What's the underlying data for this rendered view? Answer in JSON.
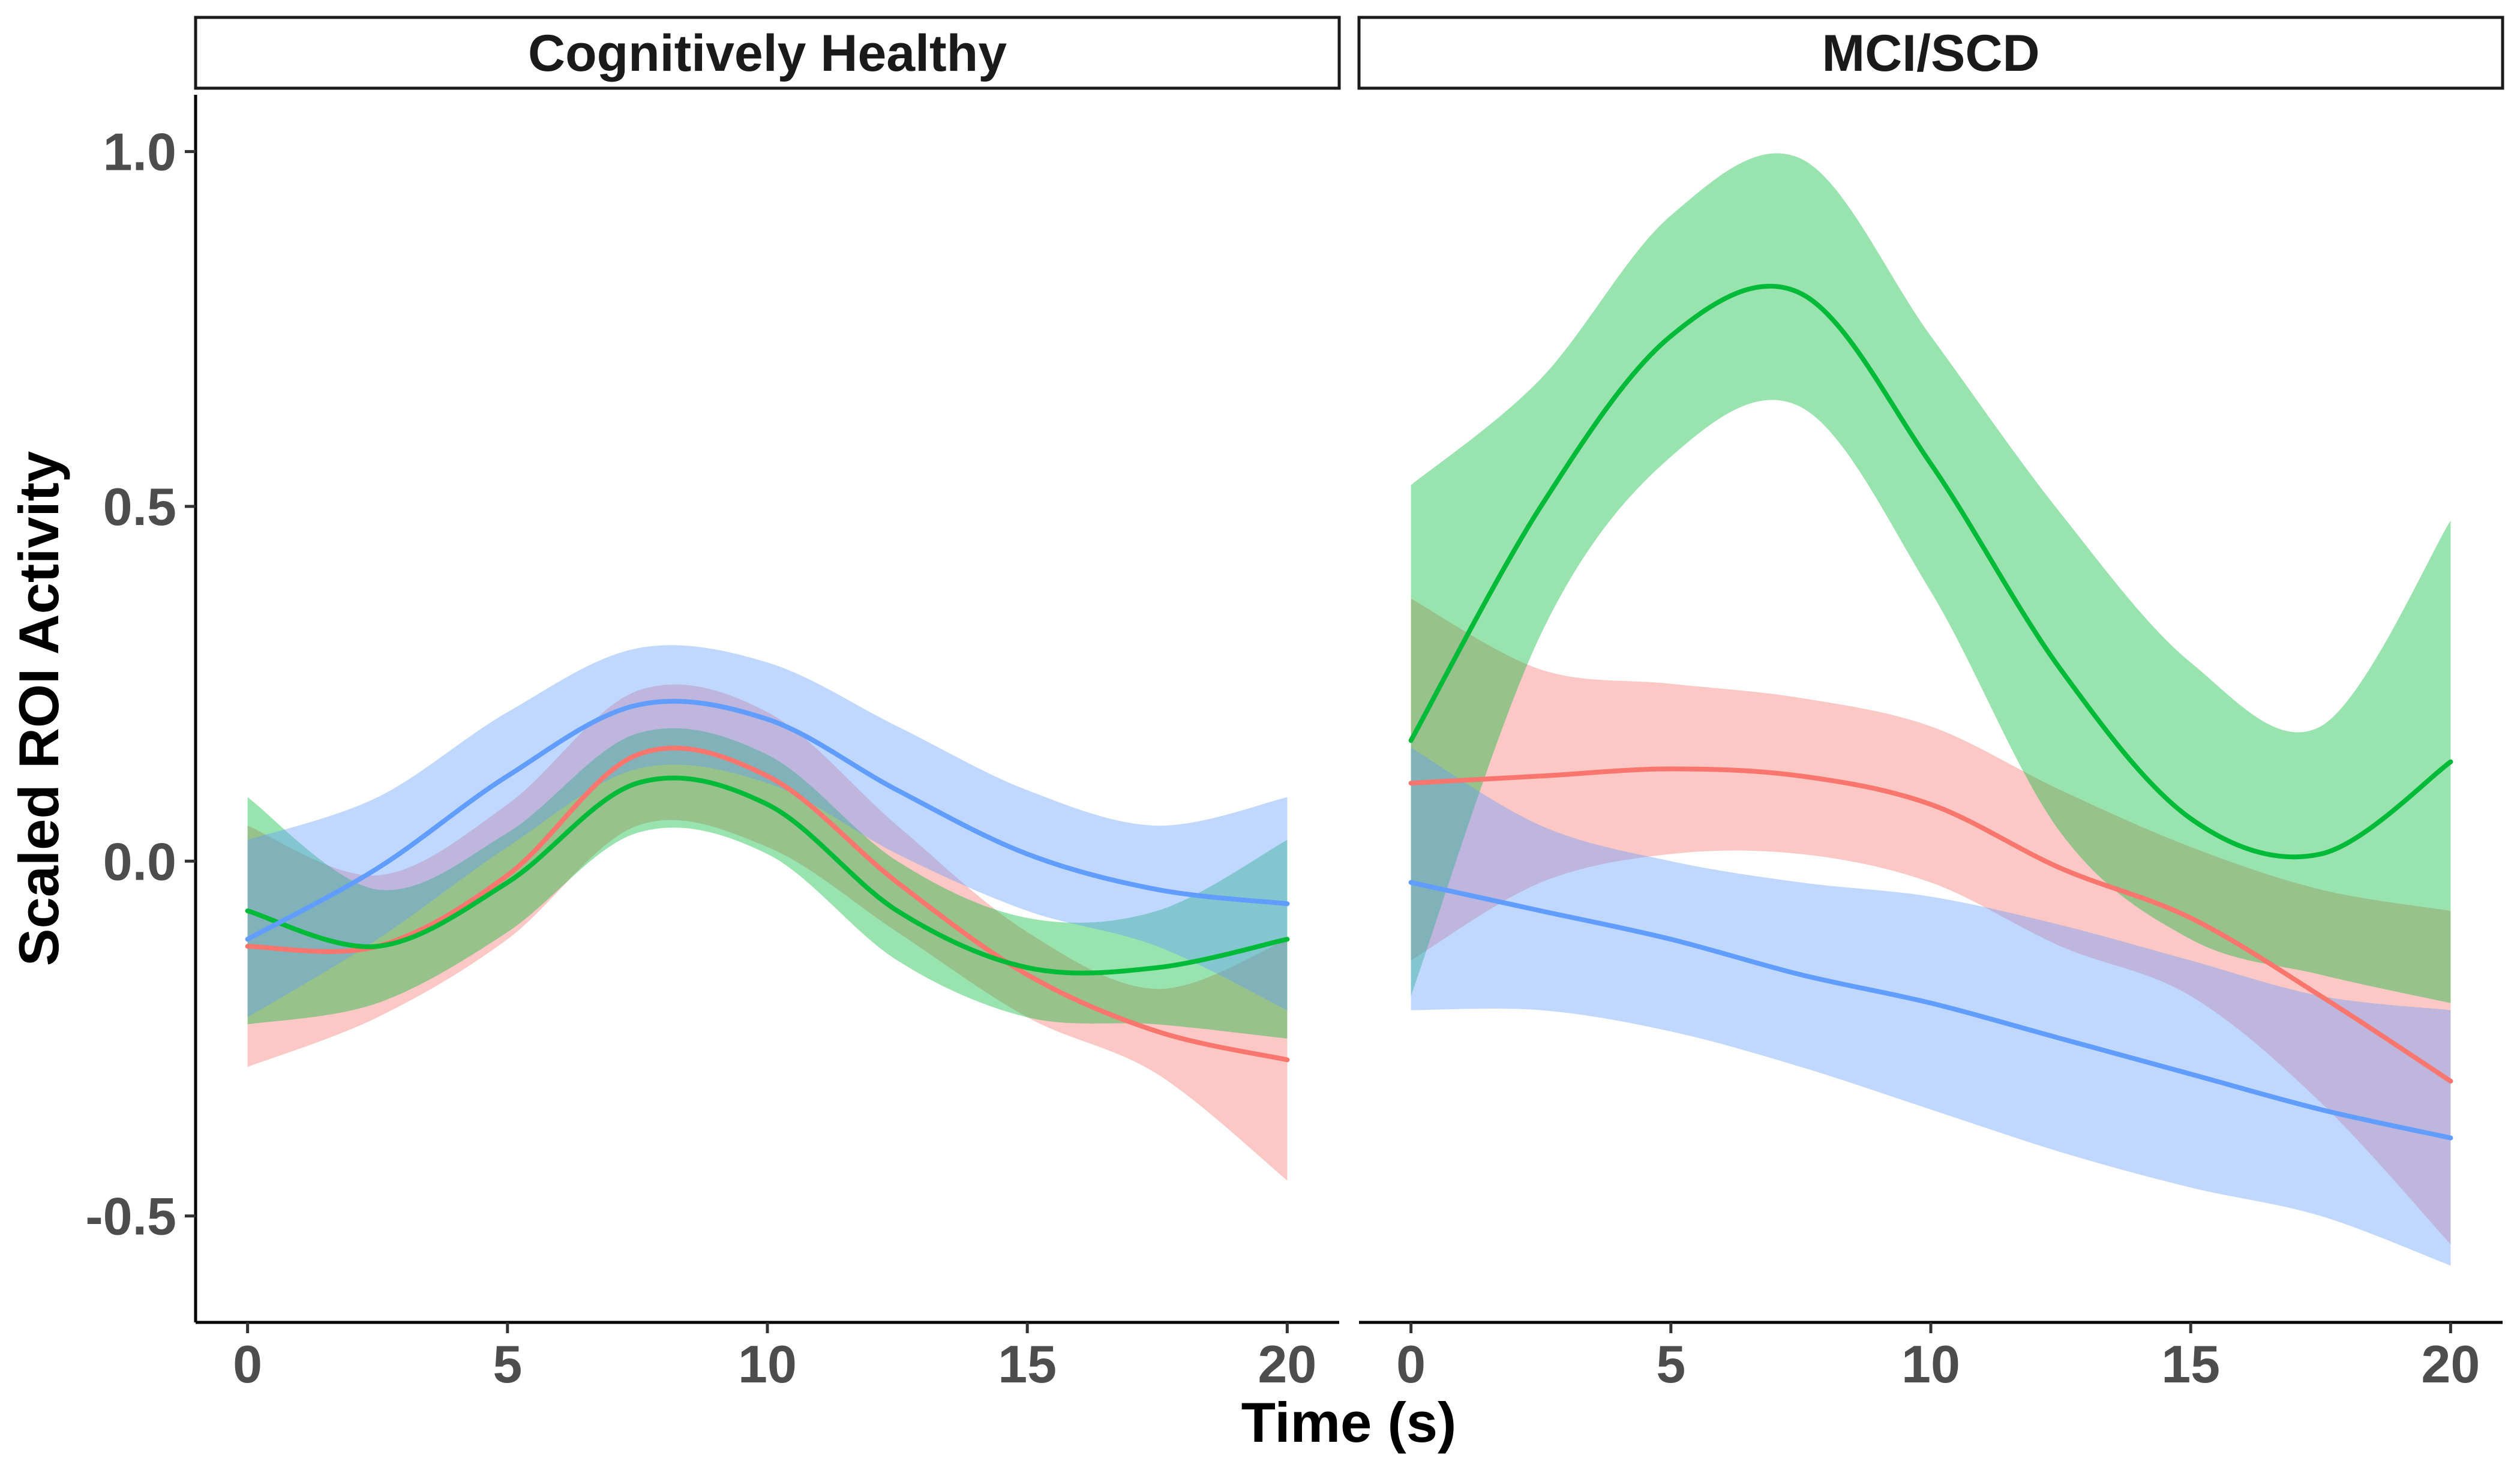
{
  "chart_data": {
    "type": "line",
    "xlabel": "Time (s)",
    "ylabel": "Scaled ROI Activity",
    "xlim": [
      -1,
      21
    ],
    "ylim": [
      -0.65,
      1.08
    ],
    "x_ticks": [
      0,
      5,
      10,
      15,
      20
    ],
    "y_ticks": [
      -0.5,
      0.0,
      0.5,
      1.0
    ],
    "y_tick_labels": [
      "-0.5",
      "0.0",
      "0.5",
      "1.0"
    ],
    "grid": false,
    "legend": "none",
    "x": [
      0,
      2.5,
      5,
      7.5,
      10,
      12.5,
      15,
      17.5,
      20
    ],
    "panels": [
      {
        "title": "Cognitively Healthy",
        "series": [
          {
            "color": "#F8766D",
            "y": [
              -0.12,
              -0.12,
              -0.02,
              0.15,
              0.12,
              -0.03,
              -0.16,
              -0.24,
              -0.28
            ],
            "lower": [
              -0.29,
              -0.22,
              -0.11,
              0.05,
              0.02,
              -0.1,
              -0.22,
              -0.3,
              -0.45
            ],
            "upper": [
              0.05,
              -0.02,
              0.08,
              0.24,
              0.21,
              0.05,
              -0.1,
              -0.18,
              -0.11
            ]
          },
          {
            "color": "#00BA38",
            "y": [
              -0.07,
              -0.12,
              -0.03,
              0.11,
              0.08,
              -0.07,
              -0.15,
              -0.15,
              -0.11
            ],
            "lower": [
              -0.23,
              -0.2,
              -0.1,
              0.04,
              0.01,
              -0.14,
              -0.22,
              -0.23,
              -0.25
            ],
            "upper": [
              0.09,
              -0.04,
              0.04,
              0.18,
              0.15,
              0.0,
              -0.08,
              -0.07,
              0.03
            ]
          },
          {
            "color": "#619CFF",
            "y": [
              -0.11,
              -0.01,
              0.12,
              0.22,
              0.2,
              0.1,
              0.01,
              -0.04,
              -0.06
            ],
            "lower": [
              -0.22,
              -0.11,
              0.02,
              0.13,
              0.11,
              0.01,
              -0.07,
              -0.12,
              -0.21
            ],
            "upper": [
              0.03,
              0.09,
              0.21,
              0.3,
              0.28,
              0.19,
              0.1,
              0.05,
              0.09
            ]
          }
        ]
      },
      {
        "title": "MCI/SCD",
        "series": [
          {
            "color": "#F8766D",
            "y": [
              0.11,
              0.12,
              0.13,
              0.12,
              0.08,
              -0.01,
              -0.08,
              -0.19,
              -0.31
            ],
            "lower": [
              -0.14,
              -0.03,
              0.01,
              0.01,
              -0.03,
              -0.12,
              -0.19,
              -0.34,
              -0.54
            ],
            "upper": [
              0.37,
              0.27,
              0.25,
              0.23,
              0.19,
              0.1,
              0.02,
              -0.04,
              -0.07
            ]
          },
          {
            "color": "#00BA38",
            "y": [
              0.17,
              0.5,
              0.74,
              0.8,
              0.56,
              0.27,
              0.06,
              0.01,
              0.14
            ],
            "lower": [
              -0.19,
              0.32,
              0.57,
              0.64,
              0.38,
              0.04,
              -0.11,
              -0.16,
              -0.2
            ],
            "upper": [
              0.53,
              0.68,
              0.91,
              0.99,
              0.74,
              0.49,
              0.28,
              0.19,
              0.48
            ]
          },
          {
            "color": "#619CFF",
            "y": [
              -0.03,
              -0.07,
              -0.11,
              -0.16,
              -0.2,
              -0.25,
              -0.3,
              -0.35,
              -0.39
            ],
            "lower": [
              -0.21,
              -0.21,
              -0.24,
              -0.29,
              -0.35,
              -0.41,
              -0.46,
              -0.5,
              -0.57
            ],
            "upper": [
              0.16,
              0.05,
              0.0,
              -0.03,
              -0.05,
              -0.09,
              -0.14,
              -0.19,
              -0.21
            ]
          }
        ]
      }
    ]
  }
}
